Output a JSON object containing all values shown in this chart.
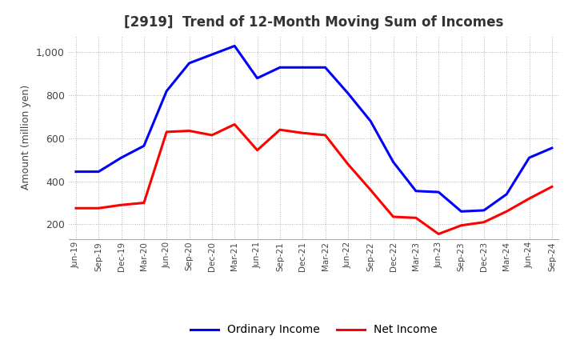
{
  "title": "[2919]  Trend of 12-Month Moving Sum of Incomes",
  "ylabel": "Amount (million yen)",
  "ylim": [
    130,
    1080
  ],
  "yticks": [
    200,
    400,
    600,
    800,
    1000
  ],
  "x_labels": [
    "Jun-19",
    "Sep-19",
    "Dec-19",
    "Mar-20",
    "Jun-20",
    "Sep-20",
    "Dec-20",
    "Mar-21",
    "Jun-21",
    "Sep-21",
    "Dec-21",
    "Mar-22",
    "Jun-22",
    "Sep-22",
    "Dec-22",
    "Mar-23",
    "Jun-23",
    "Sep-23",
    "Dec-23",
    "Mar-24",
    "Jun-24",
    "Sep-24"
  ],
  "ordinary_income": [
    445,
    445,
    510,
    565,
    820,
    950,
    990,
    1030,
    880,
    930,
    930,
    930,
    810,
    680,
    490,
    355,
    350,
    260,
    265,
    340,
    510,
    555
  ],
  "net_income": [
    275,
    275,
    290,
    300,
    630,
    635,
    615,
    665,
    545,
    640,
    625,
    615,
    480,
    360,
    235,
    230,
    155,
    195,
    210,
    260,
    320,
    375
  ],
  "ordinary_color": "#0000FF",
  "net_color": "#FF0000",
  "grid_color": "#AAAAAA",
  "background_color": "#FFFFFF",
  "title_color": "#333333",
  "legend_labels": [
    "Ordinary Income",
    "Net Income"
  ]
}
